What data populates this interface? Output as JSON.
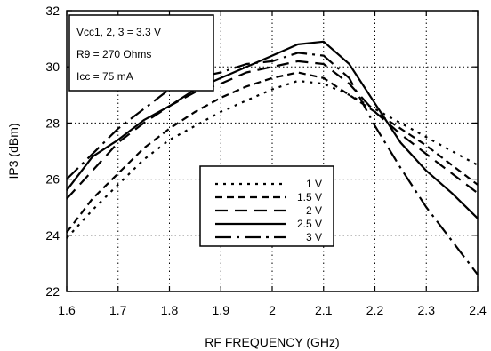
{
  "chart_data": {
    "type": "line",
    "xlabel": "RF FREQUENCY (GHz)",
    "ylabel": "IP3 (dBm)",
    "xlim": [
      1.6,
      2.4
    ],
    "ylim": [
      22,
      32
    ],
    "xticks": [
      "1.6",
      "1.7",
      "1.8",
      "1.9",
      "2",
      "2.1",
      "2.2",
      "2.3",
      "2.4"
    ],
    "yticks": [
      "22",
      "24",
      "26",
      "28",
      "30",
      "32"
    ],
    "grid": "dotted",
    "annotations": [
      "Vcc1, 2, 3 = 3.3 V",
      "R9 = 270 Ohms",
      "Icc = 75 mA"
    ],
    "legend_position": "lower-center",
    "series": [
      {
        "name": "1 V",
        "dash": "dotted",
        "x": [
          1.6,
          1.65,
          1.7,
          1.75,
          1.8,
          1.85,
          1.9,
          1.95,
          2.0,
          2.05,
          2.1,
          2.15,
          2.2,
          2.25,
          2.3,
          2.35,
          2.4
        ],
        "y": [
          23.9,
          24.9,
          25.8,
          26.7,
          27.4,
          27.9,
          28.4,
          28.8,
          29.2,
          29.5,
          29.4,
          29.0,
          28.5,
          28.0,
          27.5,
          27.0,
          26.5
        ]
      },
      {
        "name": "1.5 V",
        "dash": "short-dash",
        "x": [
          1.6,
          1.65,
          1.7,
          1.75,
          1.8,
          1.85,
          1.9,
          1.95,
          2.0,
          2.05,
          2.1,
          2.15,
          2.2,
          2.25,
          2.3,
          2.35,
          2.4
        ],
        "y": [
          24.1,
          25.3,
          26.2,
          27.1,
          27.8,
          28.4,
          28.9,
          29.3,
          29.6,
          29.8,
          29.6,
          29.0,
          28.4,
          27.8,
          27.2,
          26.5,
          25.8
        ]
      },
      {
        "name": "2 V",
        "dash": "long-dash",
        "x": [
          1.6,
          1.65,
          1.7,
          1.75,
          1.8,
          1.85,
          1.9,
          1.95,
          2.0,
          2.05,
          2.1,
          2.15,
          2.2,
          2.25,
          2.3,
          2.35,
          2.4
        ],
        "y": [
          25.3,
          26.3,
          27.3,
          28.0,
          28.6,
          29.1,
          29.4,
          29.8,
          30.0,
          30.2,
          30.1,
          29.4,
          28.4,
          27.6,
          26.9,
          26.2,
          25.5
        ]
      },
      {
        "name": "2.5 V",
        "dash": "solid",
        "x": [
          1.6,
          1.65,
          1.7,
          1.75,
          1.8,
          1.85,
          1.9,
          1.95,
          2.0,
          2.05,
          2.1,
          2.15,
          2.2,
          2.25,
          2.3,
          2.35,
          2.4
        ],
        "y": [
          25.6,
          26.8,
          27.4,
          28.1,
          28.6,
          29.2,
          29.6,
          30.0,
          30.4,
          30.8,
          30.9,
          30.1,
          28.7,
          27.3,
          26.3,
          25.5,
          24.6
        ]
      },
      {
        "name": "3 V",
        "dash": "dash-dot",
        "x": [
          1.6,
          1.65,
          1.7,
          1.75,
          1.8,
          1.85,
          1.9,
          1.95,
          2.0,
          2.05,
          2.1,
          2.15,
          2.2,
          2.25,
          2.3,
          2.35,
          2.4
        ],
        "y": [
          26.0,
          26.9,
          27.8,
          28.5,
          29.2,
          29.6,
          29.8,
          30.1,
          30.2,
          30.5,
          30.4,
          29.6,
          27.9,
          26.4,
          25.0,
          23.8,
          22.6
        ]
      }
    ]
  }
}
